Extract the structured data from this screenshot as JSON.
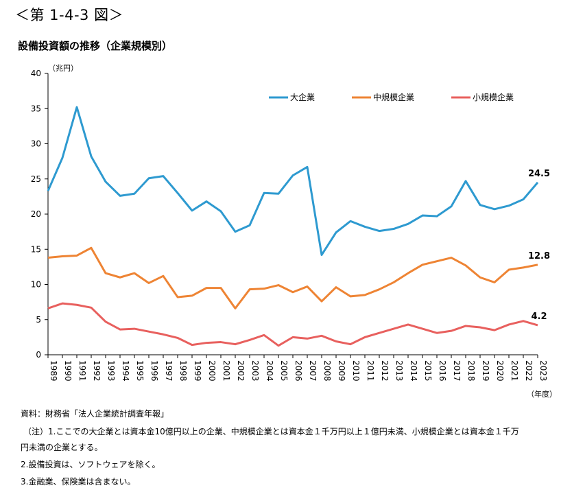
{
  "figure_label": "＜第 1-4-3 図＞",
  "chart_data": {
    "type": "line",
    "title": "設備投資額の推移（企業規模別）",
    "ylabel": "（兆円）",
    "xlabel": "（年度）",
    "ylim": [
      0,
      40
    ],
    "yticks": [
      0,
      5,
      10,
      15,
      20,
      25,
      30,
      35,
      40
    ],
    "categories": [
      "1989",
      "1990",
      "1991",
      "1992",
      "1993",
      "1994",
      "1995",
      "1996",
      "1997",
      "1998",
      "1999",
      "2000",
      "2001",
      "2002",
      "2003",
      "2004",
      "2005",
      "2006",
      "2007",
      "2008",
      "2009",
      "2010",
      "2011",
      "2012",
      "2013",
      "2014",
      "2015",
      "2016",
      "2017",
      "2018",
      "2019",
      "2020",
      "2021",
      "2022",
      "2023"
    ],
    "legend_position": "top",
    "series": [
      {
        "name": "大企業",
        "color": "#2e9ad0",
        "values": [
          23.3,
          28.0,
          35.2,
          28.2,
          24.6,
          22.6,
          22.9,
          25.1,
          25.4,
          23.0,
          20.5,
          21.8,
          20.4,
          17.5,
          18.4,
          23.0,
          22.9,
          25.5,
          26.7,
          14.2,
          17.4,
          19.0,
          18.2,
          17.6,
          17.9,
          18.6,
          19.8,
          19.7,
          21.1,
          24.7,
          21.3,
          20.7,
          21.2,
          22.1,
          24.5
        ],
        "end_label": "24.5"
      },
      {
        "name": "中規模企業",
        "color": "#ee8434",
        "values": [
          13.8,
          14.0,
          14.1,
          15.2,
          11.6,
          11.0,
          11.6,
          10.2,
          11.2,
          8.2,
          8.4,
          9.5,
          9.5,
          6.6,
          9.3,
          9.4,
          9.9,
          8.9,
          9.7,
          7.6,
          9.6,
          8.3,
          8.5,
          9.3,
          10.3,
          11.6,
          12.8,
          13.3,
          13.8,
          12.7,
          11.0,
          10.3,
          12.1,
          12.4,
          12.8
        ],
        "end_label": "12.8"
      },
      {
        "name": "小規模企業",
        "color": "#e8605e",
        "values": [
          6.6,
          7.3,
          7.1,
          6.7,
          4.7,
          3.6,
          3.7,
          3.3,
          2.9,
          2.4,
          1.4,
          1.7,
          1.8,
          1.5,
          2.1,
          2.8,
          1.3,
          2.5,
          2.3,
          2.7,
          1.9,
          1.5,
          2.5,
          3.1,
          3.7,
          4.3,
          3.7,
          3.1,
          3.4,
          4.1,
          3.9,
          3.5,
          4.3,
          4.8,
          4.2
        ],
        "end_label": "4.2"
      }
    ]
  },
  "notes": {
    "source": "資料：財務省「法人企業統計調査年報」",
    "note1a": "（注）1.ここでの大企業とは資本金10億円以上の企業、中規模企業とは資本金１千万円以上１億円未満、小規模企業とは資本金１千万",
    "note1b": "円未満の企業とする。",
    "note2": "2.設備投資は、ソフトウェアを除く。",
    "note3": "3.金融業、保険業は含まない。"
  }
}
